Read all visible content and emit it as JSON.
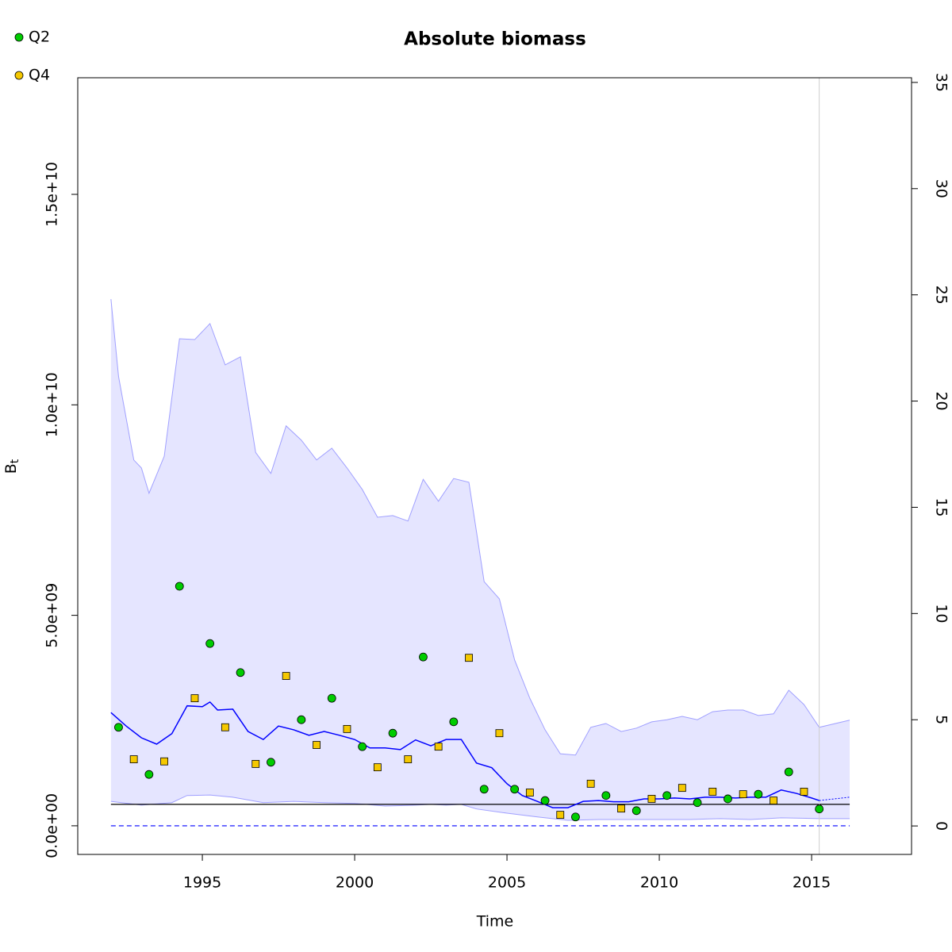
{
  "chart_data": {
    "type": "line",
    "title": "Absolute biomass",
    "xlabel": "Time",
    "ylabel": {
      "main": "B",
      "sub": "t"
    },
    "xlim": [
      1990.91,
      2018.28
    ],
    "xticks": [
      1995,
      2000,
      2005,
      2010,
      2015
    ],
    "ylim": [
      -680000000,
      17770000000
    ],
    "yticks": [
      {
        "value": 0,
        "label": "0.0e+00"
      },
      {
        "value": 5000000000,
        "label": "5.0e+09"
      },
      {
        "value": 10000000000,
        "label": "1.0e+10"
      },
      {
        "value": 15000000000,
        "label": "1.5e+10"
      }
    ],
    "y2lim": [
      -1.34,
      35.22
    ],
    "y2ticks": [
      0,
      5,
      10,
      15,
      20,
      25,
      30,
      35
    ],
    "legend_position": "top-left",
    "band": {
      "color": "#e5e5ff",
      "edge": "#a0a0ff"
    },
    "series": [
      {
        "name": "Q2",
        "kind": "points",
        "shape": "circle",
        "color": "#00cc00",
        "x": [
          1992.25,
          1993.25,
          1994.25,
          1995.25,
          1996.25,
          1997.25,
          1998.25,
          1999.25,
          2000.25,
          2001.25,
          2002.25,
          2003.25,
          2004.25,
          2005.25,
          2006.25,
          2007.25,
          2008.25,
          2009.25,
          2010.25,
          2011.25,
          2012.25,
          2013.25,
          2014.25,
          2015.25
        ],
        "values": [
          2340000000,
          1220000000,
          5690000000,
          4330000000,
          3640000000,
          1510000000,
          2520000000,
          3030000000,
          1880000000,
          2200000000,
          4010000000,
          2470000000,
          870000000,
          870000000,
          600000000,
          210000000,
          720000000,
          360000000,
          720000000,
          550000000,
          640000000,
          750000000,
          1280000000,
          400000000
        ]
      },
      {
        "name": "Q4",
        "kind": "points",
        "shape": "square",
        "color": "#f5c800",
        "x": [
          1992.75,
          1993.75,
          1994.75,
          1995.75,
          1996.75,
          1997.75,
          1998.75,
          1999.75,
          2000.75,
          2001.75,
          2002.75,
          2003.75,
          2004.75,
          2005.75,
          2006.75,
          2007.75,
          2008.75,
          2009.75,
          2010.75,
          2011.75,
          2012.75,
          2013.75,
          2014.75
        ],
        "values": [
          1580000000,
          1530000000,
          3030000000,
          2340000000,
          1470000000,
          3560000000,
          1920000000,
          2300000000,
          1390000000,
          1580000000,
          1880000000,
          3990000000,
          2200000000,
          790000000,
          260000000,
          1000000000,
          410000000,
          640000000,
          900000000,
          810000000,
          750000000,
          600000000,
          810000000
        ]
      }
    ],
    "estimate": {
      "color": "#0000ff",
      "x": [
        1992,
        1992.5,
        1993,
        1993.5,
        1994,
        1994.5,
        1995,
        1995.25,
        1995.5,
        1996,
        1996.5,
        1997,
        1997.5,
        1998,
        1998.5,
        1999,
        1999.5,
        2000,
        2000.5,
        2001,
        2001.5,
        2002,
        2002.5,
        2003,
        2003.5,
        2004,
        2004.5,
        2005,
        2005.5,
        2006,
        2006.5,
        2007,
        2007.5,
        2008,
        2008.5,
        2009,
        2009.5,
        2010,
        2010.5,
        2011,
        2011.5,
        2012,
        2012.5,
        2013,
        2013.5,
        2014,
        2014.5,
        2015,
        2015.25
      ],
      "values": [
        2690000000,
        2370000000,
        2090000000,
        1940000000,
        2190000000,
        2850000000,
        2830000000,
        2940000000,
        2750000000,
        2770000000,
        2240000000,
        2050000000,
        2370000000,
        2280000000,
        2150000000,
        2240000000,
        2150000000,
        2050000000,
        1850000000,
        1850000000,
        1810000000,
        2040000000,
        1900000000,
        2050000000,
        2050000000,
        1490000000,
        1380000000,
        1000000000,
        720000000,
        580000000,
        430000000,
        430000000,
        580000000,
        600000000,
        570000000,
        570000000,
        640000000,
        640000000,
        660000000,
        640000000,
        680000000,
        680000000,
        660000000,
        680000000,
        680000000,
        850000000,
        770000000,
        660000000,
        600000000
      ],
      "forecast_x": [
        2015.25,
        2016.25
      ],
      "forecast_values": [
        600000000,
        680000000
      ]
    },
    "upper": {
      "x": [
        1992,
        1992.25,
        1992.75,
        1993,
        1993.25,
        1993.75,
        1994.25,
        1994.75,
        1995.25,
        1995.75,
        1996.25,
        1996.75,
        1997.25,
        1997.75,
        1998.25,
        1998.75,
        1999.25,
        1999.75,
        2000.25,
        2000.75,
        2001.25,
        2001.75,
        2002.25,
        2002.75,
        2003.25,
        2003.75,
        2004.25,
        2004.75,
        2005.25,
        2005.75,
        2006.25,
        2006.75,
        2007.25,
        2007.75,
        2008.25,
        2008.75,
        2009.25,
        2009.75,
        2010.25,
        2010.75,
        2011.25,
        2011.75,
        2012.25,
        2012.75,
        2013.25,
        2013.75,
        2014.25,
        2014.75,
        2015.25,
        2016.25
      ],
      "values": [
        12510000000,
        10670000000,
        8690000000,
        8500000000,
        7900000000,
        8780000000,
        11570000000,
        11550000000,
        11930000000,
        10950000000,
        11140000000,
        8870000000,
        8370000000,
        9500000000,
        9160000000,
        8690000000,
        8970000000,
        8500000000,
        7990000000,
        7330000000,
        7370000000,
        7240000000,
        8230000000,
        7710000000,
        8250000000,
        8160000000,
        5800000000,
        5390000000,
        3940000000,
        3030000000,
        2280000000,
        1710000000,
        1680000000,
        2340000000,
        2430000000,
        2240000000,
        2320000000,
        2470000000,
        2520000000,
        2600000000,
        2520000000,
        2710000000,
        2750000000,
        2750000000,
        2620000000,
        2660000000,
        3220000000,
        2880000000,
        2340000000,
        2510000000
      ]
    },
    "lower": {
      "x": [
        1992,
        1993,
        1994,
        1994.5,
        1995.25,
        1996,
        1997,
        1998,
        1999,
        2000,
        2001,
        2002,
        2002.5,
        2003,
        2003.5,
        2004,
        2005,
        2006,
        2007,
        2008,
        2009,
        2010,
        2011,
        2012,
        2013,
        2014,
        2015.25,
        2016.25
      ],
      "values": [
        580000000,
        490000000,
        550000000,
        720000000,
        730000000,
        680000000,
        550000000,
        580000000,
        550000000,
        530000000,
        470000000,
        490000000,
        510000000,
        490000000,
        510000000,
        400000000,
        300000000,
        210000000,
        130000000,
        150000000,
        150000000,
        150000000,
        150000000,
        170000000,
        150000000,
        190000000,
        170000000,
        170000000
      ]
    },
    "hlines": [
      {
        "value": 510000000,
        "color": "#000000",
        "dash": false
      },
      {
        "value": 0,
        "color": "#0000ff",
        "dash": true
      }
    ],
    "vline": {
      "value": 2015.25,
      "color": "#cccccc"
    }
  }
}
